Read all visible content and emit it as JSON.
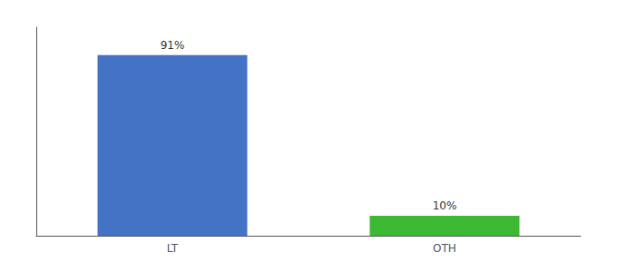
{
  "chart_data": {
    "type": "bar",
    "categories": [
      "LT",
      "OTH"
    ],
    "values": [
      91,
      10
    ],
    "value_labels": [
      "91%",
      "10%"
    ],
    "colors": [
      "#4472c4",
      "#3cb832"
    ],
    "ylim": [
      0,
      105
    ],
    "data_labels": true,
    "tick_labels": "x",
    "grid": false
  }
}
